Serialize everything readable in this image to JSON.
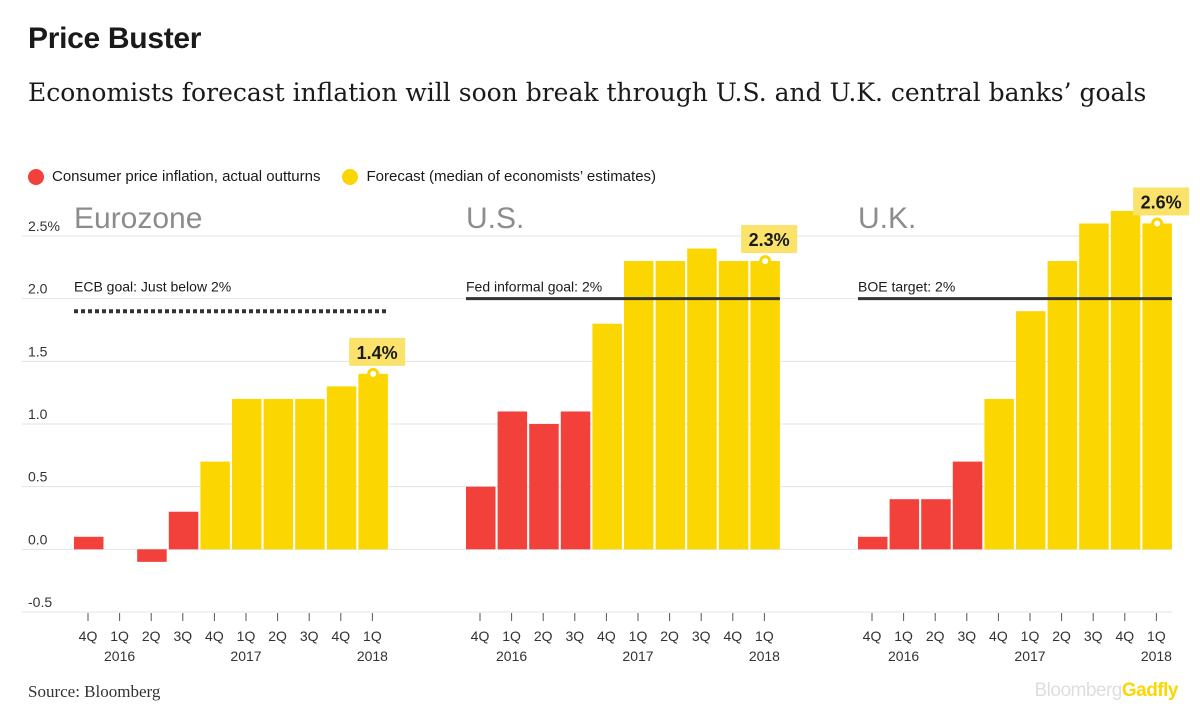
{
  "header": {
    "title": "Price Buster",
    "subtitle": "Economists forecast inflation will soon break through U.S. and U.K. central banks’ goals"
  },
  "legend": {
    "actual": "Consumer price inflation, actual outturns",
    "forecast": "Forecast (median of economists’ estimates)"
  },
  "colors": {
    "actual": "#f2413a",
    "forecast": "#fcd600",
    "label_bg": "#fbe26b",
    "panel_title": "#8c8c8c",
    "goal_line": "#333333",
    "grid": "#e3e3e3"
  },
  "footer": {
    "source": "Source: Bloomberg",
    "brand_part1": "Bloomberg",
    "brand_part2": "Gadfly",
    "brand_color": "#fcd600"
  },
  "chart_data": {
    "type": "bar",
    "y_axis": {
      "ticks": [
        -0.5,
        0.0,
        0.5,
        1.0,
        1.5,
        2.0,
        2.5
      ],
      "tick_labels": [
        "-0.5",
        "0.0",
        "0.5",
        "1.0",
        "1.5",
        "2.0",
        "2.5%"
      ],
      "ylim": [
        -0.5,
        2.7
      ]
    },
    "categories": [
      "4Q",
      "1Q",
      "2Q",
      "3Q",
      "4Q",
      "1Q",
      "2Q",
      "3Q",
      "4Q",
      "1Q"
    ],
    "year_labels": [
      {
        "label": "2016",
        "index": 1
      },
      {
        "label": "2017",
        "index": 5
      },
      {
        "label": "2018",
        "index": 9
      }
    ],
    "panels": [
      {
        "name": "Eurozone",
        "actual": [
          0.1,
          0.0,
          -0.1,
          0.3,
          null,
          null,
          null,
          null,
          null,
          null
        ],
        "forecast": [
          null,
          null,
          null,
          null,
          0.7,
          1.2,
          1.2,
          1.2,
          1.3,
          1.4
        ],
        "goal": {
          "value": 1.9,
          "label": "ECB goal: Just below 2%",
          "style": "dotted"
        },
        "callout": "1.4%"
      },
      {
        "name": "U.S.",
        "actual": [
          0.5,
          1.1,
          1.0,
          1.1,
          null,
          null,
          null,
          null,
          null,
          null
        ],
        "forecast": [
          null,
          null,
          null,
          null,
          1.8,
          2.3,
          2.3,
          2.4,
          2.3,
          2.3
        ],
        "goal": {
          "value": 2.0,
          "label": "Fed informal goal: 2%",
          "style": "solid"
        },
        "callout": "2.3%"
      },
      {
        "name": "U.K.",
        "actual": [
          0.1,
          0.4,
          0.4,
          0.7,
          null,
          null,
          null,
          null,
          null,
          null
        ],
        "forecast": [
          null,
          null,
          null,
          null,
          1.2,
          1.9,
          2.3,
          2.6,
          2.7,
          2.6
        ],
        "goal": {
          "value": 2.0,
          "label": "BOE target: 2%",
          "style": "solid"
        },
        "callout": "2.6%"
      }
    ]
  }
}
